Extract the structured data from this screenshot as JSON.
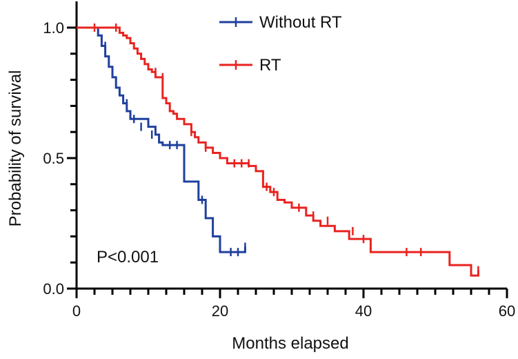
{
  "chart_data": {
    "type": "line",
    "subtype": "kaplan-meier",
    "xlabel": "Months elapsed",
    "ylabel": "Probability of survival",
    "xlim": [
      0,
      60
    ],
    "ylim": [
      0,
      1.0
    ],
    "x_ticks": [
      "0",
      "20",
      "40",
      "60"
    ],
    "y_ticks": [
      "0.0",
      "0.5",
      "1.0"
    ],
    "grid": false,
    "legend_position": "top-right",
    "annotation": "P<0.001",
    "series": [
      {
        "name": "Without RT",
        "color": "#1f3f9e",
        "steps": [
          [
            0,
            1.0
          ],
          [
            3,
            0.97
          ],
          [
            3.5,
            0.93
          ],
          [
            4,
            0.89
          ],
          [
            4.5,
            0.85
          ],
          [
            5,
            0.81
          ],
          [
            5.5,
            0.77
          ],
          [
            6,
            0.74
          ],
          [
            6.5,
            0.71
          ],
          [
            7,
            0.68
          ],
          [
            7.5,
            0.65
          ],
          [
            10,
            0.62
          ],
          [
            11,
            0.59
          ],
          [
            11.5,
            0.56
          ],
          [
            12,
            0.55
          ],
          [
            15,
            0.41
          ],
          [
            17,
            0.34
          ],
          [
            18,
            0.27
          ],
          [
            19,
            0.2
          ],
          [
            20,
            0.14
          ],
          [
            23.5,
            0.16
          ]
        ],
        "censored": [
          [
            4,
            0.93
          ],
          [
            7,
            0.71
          ],
          [
            8,
            0.65
          ],
          [
            9,
            0.62
          ],
          [
            10.5,
            0.59
          ],
          [
            13,
            0.55
          ],
          [
            14,
            0.55
          ],
          [
            17.5,
            0.34
          ],
          [
            21.5,
            0.14
          ],
          [
            22.5,
            0.14
          ],
          [
            23.5,
            0.16
          ]
        ]
      },
      {
        "name": "RT",
        "color": "#e8231f",
        "steps": [
          [
            0,
            1.0
          ],
          [
            6,
            0.98
          ],
          [
            6.5,
            0.97
          ],
          [
            7,
            0.96
          ],
          [
            7.5,
            0.94
          ],
          [
            8,
            0.92
          ],
          [
            8.5,
            0.9
          ],
          [
            9,
            0.88
          ],
          [
            9.5,
            0.86
          ],
          [
            10,
            0.84
          ],
          [
            10.5,
            0.83
          ],
          [
            11,
            0.81
          ],
          [
            12,
            0.73
          ],
          [
            12.5,
            0.71
          ],
          [
            13,
            0.68
          ],
          [
            13.5,
            0.67
          ],
          [
            14,
            0.65
          ],
          [
            15,
            0.63
          ],
          [
            16,
            0.6
          ],
          [
            16.5,
            0.58
          ],
          [
            17,
            0.56
          ],
          [
            18,
            0.54
          ],
          [
            19,
            0.52
          ],
          [
            20,
            0.5
          ],
          [
            21,
            0.48
          ],
          [
            24,
            0.47
          ],
          [
            25,
            0.45
          ],
          [
            26,
            0.39
          ],
          [
            27,
            0.37
          ],
          [
            28,
            0.34
          ],
          [
            29,
            0.33
          ],
          [
            30,
            0.31
          ],
          [
            32,
            0.28
          ],
          [
            33,
            0.26
          ],
          [
            34,
            0.24
          ],
          [
            36,
            0.22
          ],
          [
            38,
            0.19
          ],
          [
            41,
            0.14
          ],
          [
            52,
            0.09
          ],
          [
            55,
            0.05
          ],
          [
            56,
            0.07
          ]
        ],
        "censored": [
          [
            2.5,
            1.0
          ],
          [
            5.5,
            1.0
          ],
          [
            11,
            0.83
          ],
          [
            12,
            0.81
          ],
          [
            16,
            0.6
          ],
          [
            18,
            0.54
          ],
          [
            22,
            0.48
          ],
          [
            23,
            0.48
          ],
          [
            24,
            0.48
          ],
          [
            26.5,
            0.39
          ],
          [
            27.5,
            0.37
          ],
          [
            31,
            0.31
          ],
          [
            33,
            0.28
          ],
          [
            35,
            0.26
          ],
          [
            38.5,
            0.22
          ],
          [
            40,
            0.19
          ],
          [
            46,
            0.14
          ],
          [
            48,
            0.14
          ],
          [
            56,
            0.07
          ]
        ]
      }
    ]
  }
}
